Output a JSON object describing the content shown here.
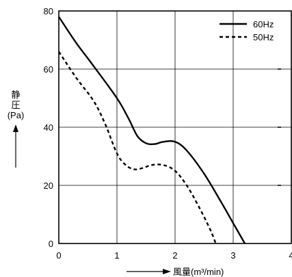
{
  "chart_data": {
    "type": "line",
    "ylabel_lines": [
      "静",
      "圧",
      "(Pa)"
    ],
    "xlabel": "風量(m³/min)",
    "xlim": [
      0,
      4
    ],
    "ylim": [
      0,
      80
    ],
    "x_ticks": [
      "0",
      "1",
      "2",
      "3",
      "4"
    ],
    "y_ticks": [
      "0",
      "20",
      "40",
      "60",
      "80"
    ],
    "grid": true,
    "legend_position": "top-right",
    "series": [
      {
        "name": "60Hz",
        "style": "solid",
        "points": [
          [
            0,
            78
          ],
          [
            0.3,
            69
          ],
          [
            0.6,
            61
          ],
          [
            1.0,
            50
          ],
          [
            1.2,
            43
          ],
          [
            1.35,
            37
          ],
          [
            1.5,
            34.5
          ],
          [
            1.65,
            34.2
          ],
          [
            1.8,
            35
          ],
          [
            2.0,
            35
          ],
          [
            2.2,
            32
          ],
          [
            2.5,
            24
          ],
          [
            2.8,
            14
          ],
          [
            3.0,
            7
          ],
          [
            3.2,
            0
          ]
        ]
      },
      {
        "name": "50Hz",
        "style": "dashed",
        "points": [
          [
            0,
            66
          ],
          [
            0.3,
            57
          ],
          [
            0.6,
            49
          ],
          [
            0.8,
            41
          ],
          [
            1.0,
            31
          ],
          [
            1.15,
            27
          ],
          [
            1.3,
            25.5
          ],
          [
            1.45,
            26
          ],
          [
            1.6,
            27
          ],
          [
            1.8,
            27
          ],
          [
            2.0,
            25
          ],
          [
            2.2,
            20
          ],
          [
            2.4,
            13
          ],
          [
            2.6,
            5
          ],
          [
            2.7,
            0
          ]
        ]
      }
    ]
  }
}
